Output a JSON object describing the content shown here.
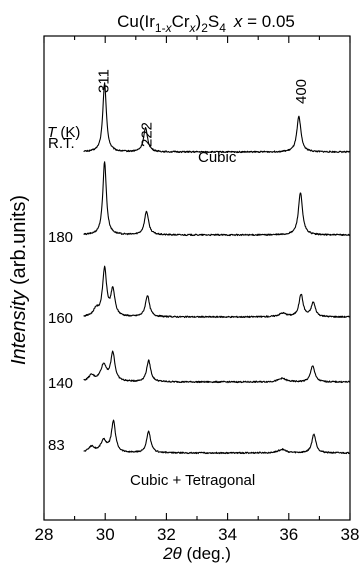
{
  "chart_data": {
    "type": "line",
    "title_parts": {
      "prefix": "Cu(Ir",
      "sub1": "1-",
      "sub1_var": "x",
      "mid1": "Cr",
      "sub2_var": "x",
      "mid2": ")",
      "sub3": "2",
      "mid3": "S",
      "sub4": "4",
      "var": "x",
      "value": " = 0.05"
    },
    "xlabel": {
      "symbol": "2θ",
      "unit": " (deg.)"
    },
    "ylabel": {
      "italic": "Intensity",
      "unit": " (arb.units)"
    },
    "xlim": [
      28,
      38
    ],
    "x_ticks": [
      "28",
      "30",
      "32",
      "34",
      "36",
      "38"
    ],
    "temperature_header": {
      "symbol": "T",
      "unit": " (K)"
    },
    "peak_labels": [
      {
        "text": "311",
        "x": 29.95
      },
      {
        "text": "222",
        "x": 31.35
      },
      {
        "text": "400",
        "x": 36.4
      }
    ],
    "phase_labels": {
      "top": "Cubic",
      "bottom": "Cubic + Tetragonal"
    },
    "series": [
      {
        "name": "R.T.",
        "peaks": [
          [
            29.98,
            0.58,
            0.07
          ],
          [
            31.32,
            0.2,
            0.08
          ],
          [
            36.33,
            0.3,
            0.08
          ]
        ]
      },
      {
        "name": "180",
        "peaks": [
          [
            29.98,
            0.62,
            0.07
          ],
          [
            31.35,
            0.2,
            0.08
          ],
          [
            36.38,
            0.36,
            0.08
          ]
        ]
      },
      {
        "name": "160",
        "peaks": [
          [
            29.98,
            0.4,
            0.08
          ],
          [
            30.25,
            0.22,
            0.08
          ],
          [
            29.7,
            0.06,
            0.1
          ],
          [
            31.38,
            0.18,
            0.08
          ],
          [
            35.8,
            0.03,
            0.15
          ],
          [
            36.4,
            0.19,
            0.08
          ],
          [
            36.8,
            0.12,
            0.08
          ]
        ]
      },
      {
        "name": "140",
        "peaks": [
          [
            29.95,
            0.14,
            0.12
          ],
          [
            30.25,
            0.24,
            0.08
          ],
          [
            29.55,
            0.05,
            0.12
          ],
          [
            31.42,
            0.18,
            0.08
          ],
          [
            35.78,
            0.03,
            0.15
          ],
          [
            36.78,
            0.14,
            0.08
          ]
        ]
      },
      {
        "name": "83",
        "peaks": [
          [
            29.95,
            0.1,
            0.12
          ],
          [
            30.27,
            0.26,
            0.08
          ],
          [
            29.55,
            0.05,
            0.12
          ],
          [
            31.42,
            0.18,
            0.08
          ],
          [
            35.78,
            0.03,
            0.15
          ],
          [
            36.82,
            0.16,
            0.08
          ]
        ]
      }
    ]
  }
}
